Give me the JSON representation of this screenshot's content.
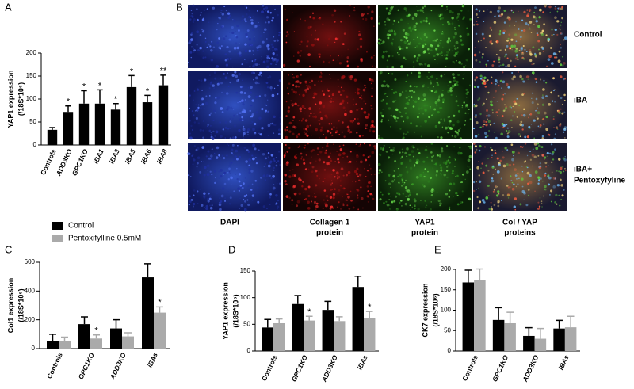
{
  "panels": [
    "A",
    "B",
    "C",
    "D",
    "E"
  ],
  "legend": {
    "items": [
      "Control",
      "Pentoxifylline 0.5mM"
    ]
  },
  "microscopy": {
    "columns": [
      [
        "DAPI"
      ],
      [
        "Collagen 1",
        "protein"
      ],
      [
        "YAP1",
        "protein"
      ],
      [
        "Col / YAP",
        "proteins"
      ]
    ],
    "rows": [
      [
        "Control"
      ],
      [
        "iBA"
      ],
      [
        "iBA+",
        "Pentoxyfyline"
      ]
    ]
  },
  "chart_data": [
    {
      "type": "bar",
      "ylabel": [
        "YAP1 expression",
        "(/18S*10⁶)"
      ],
      "categories": [
        "Controls",
        "ADD3KO",
        "GPC1KO",
        "iBA1",
        "iBA3",
        "iBA5",
        "iBA6",
        "iBA8"
      ],
      "values": [
        33,
        72,
        90,
        90,
        77,
        126,
        93,
        130
      ],
      "errors": [
        5,
        13,
        28,
        30,
        13,
        25,
        15,
        22
      ],
      "significance": [
        null,
        "*",
        "*",
        "*",
        "*",
        "*",
        "*",
        "**"
      ],
      "color": "#000000",
      "ylim": [
        0,
        200
      ],
      "yticks": [
        0,
        50,
        100,
        150,
        200
      ]
    },
    {
      "type": "bar",
      "ylabel": [
        "Col1 expression",
        "(/18S*10⁶)"
      ],
      "categories": [
        "Controls",
        "GPC1KO",
        "ADD3KO",
        "iBAs"
      ],
      "series": [
        {
          "name": "Control",
          "color": "#000000",
          "values": [
            55,
            170,
            140,
            495
          ],
          "errors": [
            45,
            50,
            60,
            95
          ],
          "significance": [
            null,
            null,
            null,
            null
          ]
        },
        {
          "name": "Pentoxifylline 0.5mM",
          "color": "#aaaaaa",
          "values": [
            50,
            70,
            85,
            250
          ],
          "errors": [
            30,
            25,
            25,
            40
          ],
          "significance": [
            null,
            "*",
            null,
            "*"
          ]
        }
      ],
      "ylim": [
        0,
        600
      ],
      "yticks": [
        0,
        200,
        400,
        600
      ]
    },
    {
      "type": "bar",
      "ylabel": [
        "YAP1 expression",
        "(/18S*10⁶)"
      ],
      "categories": [
        "Controls",
        "GPC1KO",
        "ADD3KO",
        "iBAs"
      ],
      "series": [
        {
          "color": "#000000",
          "values": [
            44,
            88,
            77,
            120
          ],
          "errors": [
            15,
            16,
            16,
            20
          ],
          "significance": [
            null,
            null,
            null,
            null
          ]
        },
        {
          "color": "#aaaaaa",
          "values": [
            52,
            57,
            56,
            62
          ],
          "errors": [
            8,
            8,
            8,
            12
          ],
          "significance": [
            null,
            "*",
            null,
            "*"
          ]
        }
      ],
      "ylim": [
        0,
        150
      ],
      "yticks": [
        0,
        50,
        100,
        150
      ]
    },
    {
      "type": "bar",
      "ylabel": [
        "CK7 expression",
        "(/18S*10⁶)"
      ],
      "categories": [
        "Controls",
        "GPC1KO",
        "ADD3KO",
        "iBAs"
      ],
      "series": [
        {
          "color": "#000000",
          "values": [
            168,
            76,
            37,
            55
          ],
          "errors": [
            30,
            30,
            20,
            20
          ],
          "significance": [
            null,
            null,
            null,
            null
          ]
        },
        {
          "color": "#aaaaaa",
          "values": [
            173,
            68,
            30,
            58
          ],
          "errors": [
            28,
            27,
            25,
            27
          ],
          "significance": [
            null,
            null,
            null,
            null
          ]
        }
      ],
      "ylim": [
        0,
        200
      ],
      "yticks": [
        0,
        50,
        100,
        150,
        200
      ]
    }
  ]
}
